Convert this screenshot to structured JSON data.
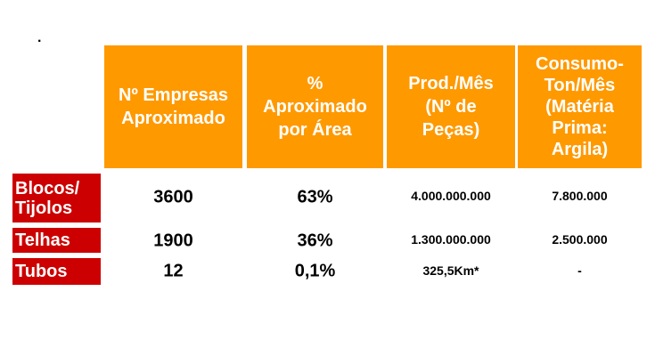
{
  "bullet": ".",
  "headers": [
    "Nº Empresas\nAproximado",
    "%\nAproximado\npor Área",
    "Prod./Mês\n(Nº de\nPeças)",
    "Consumo-\nTon/Mês\n(Matéria\nPrima:\nArgila)"
  ],
  "rows": [
    {
      "label": "Blocos/\nTijolos",
      "empresas": "3600",
      "percent": "63%",
      "producao": "4.000.000.000",
      "consumo": "7.800.000"
    },
    {
      "label": "Telhas",
      "empresas": "1900",
      "percent": "36%",
      "producao": "1.300.000.000",
      "consumo": "2.500.000"
    },
    {
      "label": "Tubos",
      "empresas": "12",
      "percent": "0,1%",
      "producao": "325,5Km*",
      "consumo": "-"
    }
  ],
  "colors": {
    "header": "#FF9900",
    "row_label": "#CC0000"
  }
}
